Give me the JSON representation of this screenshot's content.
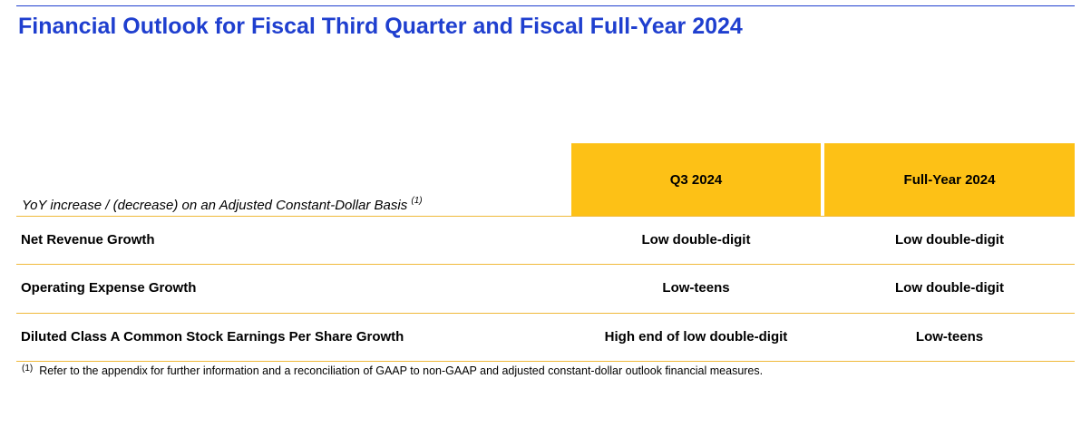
{
  "title": "Financial Outlook for Fiscal Third Quarter and Fiscal Full-Year 2024",
  "table": {
    "basis_label": "YoY increase / (decrease) on an Adjusted Constant-Dollar Basis",
    "basis_note_marker": "(1)",
    "columns": [
      "Q3 2024",
      "Full-Year 2024"
    ],
    "rows": [
      {
        "label": "Net Revenue Growth",
        "q3": "Low double-digit",
        "fy": "Low double-digit"
      },
      {
        "label": "Operating Expense Growth",
        "q3": "Low-teens",
        "fy": "Low double-digit"
      },
      {
        "label": "Diluted Class A Common Stock Earnings Per Share Growth",
        "q3": "High end of low double-digit",
        "fy": "Low-teens"
      }
    ]
  },
  "footnote": {
    "marker": "(1)",
    "text": "Refer to the appendix for further information and a reconciliation of GAAP to non-GAAP and adjusted constant-dollar outlook financial measures."
  },
  "colors": {
    "title": "#1f3fcf",
    "header_fill": "#fdc116",
    "rule": "#f0b93a"
  }
}
